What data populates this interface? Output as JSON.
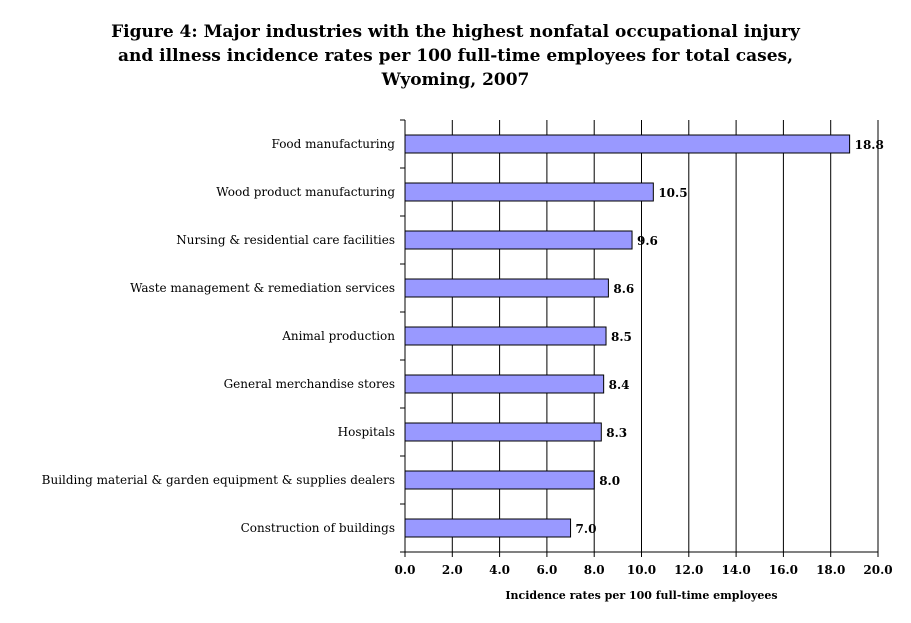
{
  "chart_data": {
    "type": "bar",
    "orientation": "horizontal",
    "title_lines": [
      "Figure 4:  Major industries with the highest nonfatal occupational injury",
      "and illness incidence rates per 100 full-time employees for total cases,",
      "Wyoming, 2007"
    ],
    "categories": [
      "Food manufacturing",
      "Wood product manufacturing",
      "Nursing & residential care facilities",
      "Waste management & remediation services",
      "Animal production",
      "General merchandise stores",
      "Hospitals",
      "Building material & garden equipment & supplies dealers",
      "Construction of buildings"
    ],
    "values": [
      18.8,
      10.5,
      9.6,
      8.6,
      8.5,
      8.4,
      8.3,
      8.0,
      7.0
    ],
    "value_labels": [
      "18.8",
      "10.5",
      "9.6",
      "8.6",
      "8.5",
      "8.4",
      "8.3",
      "8.0",
      "7.0"
    ],
    "xlabel": "Incidence rates per 100 full-time employees",
    "xlim": [
      0,
      20
    ],
    "xticks": [
      "0.0",
      "2.0",
      "4.0",
      "6.0",
      "8.0",
      "10.0",
      "12.0",
      "14.0",
      "16.0",
      "18.0",
      "20.0"
    ],
    "grid": "vertical",
    "legend": "none",
    "bar_color": "#9999ff",
    "bar_edge_color": "#000000"
  }
}
